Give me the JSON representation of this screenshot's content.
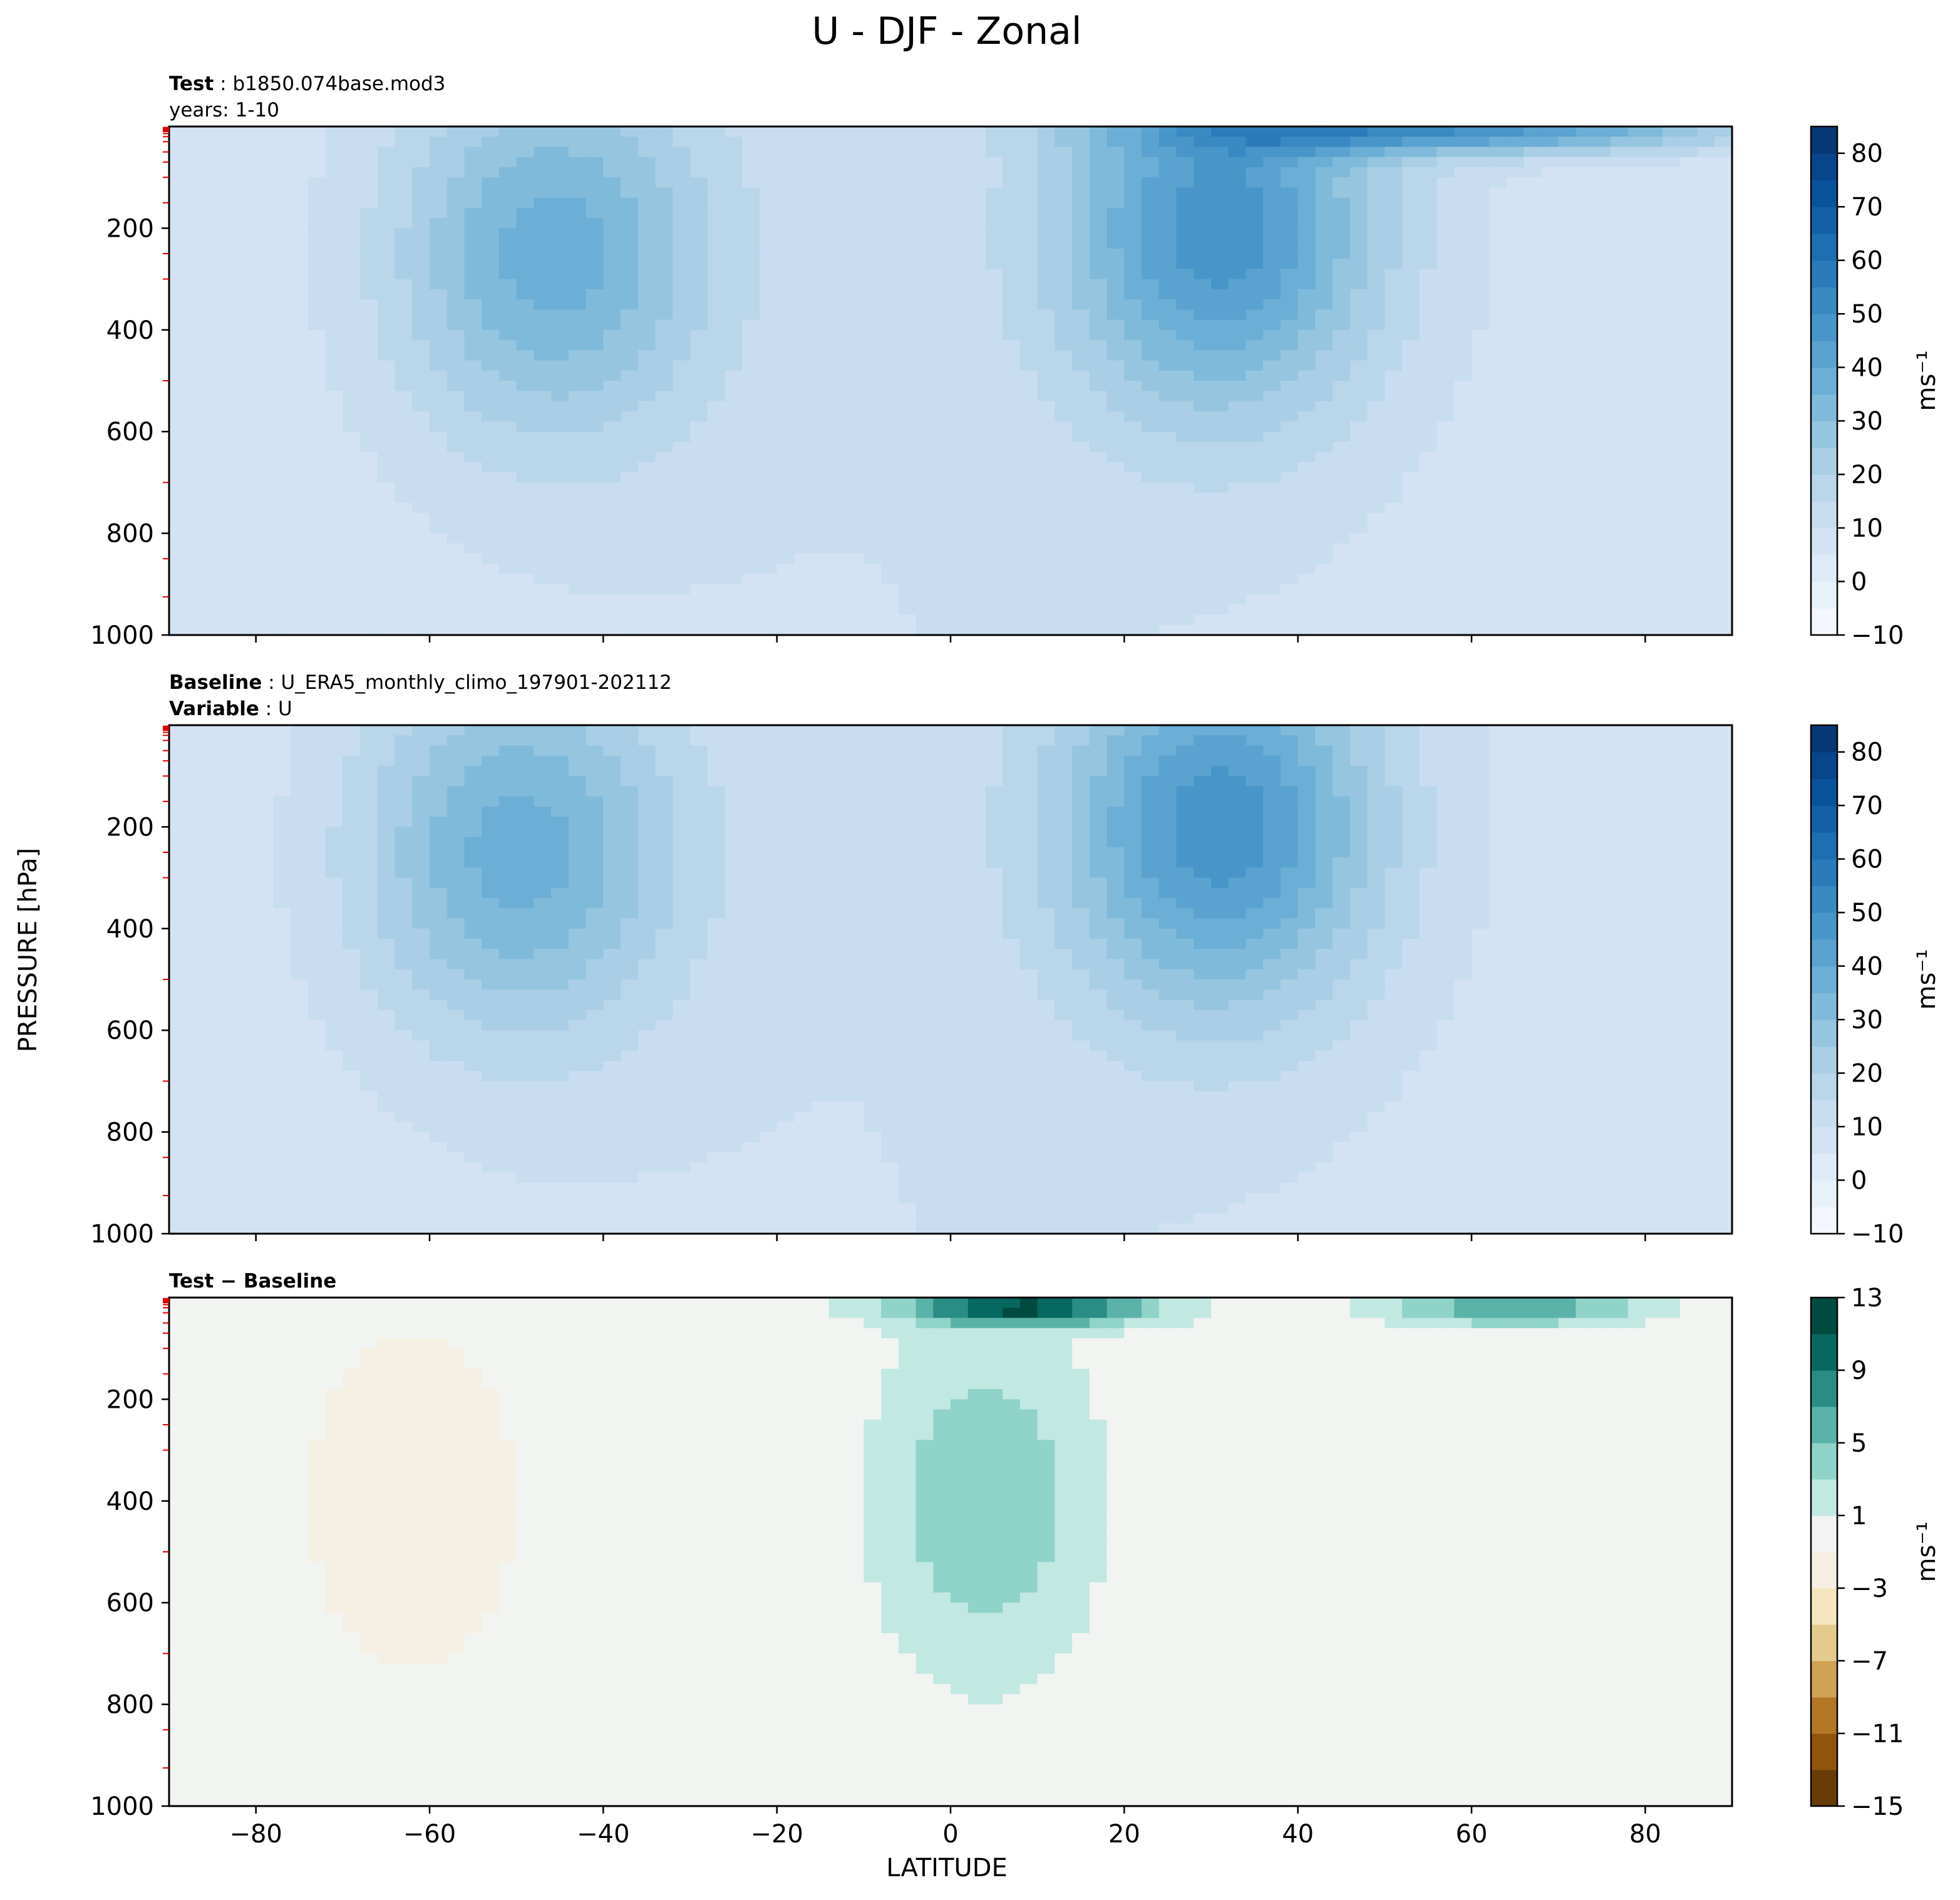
{
  "figure": {
    "title": "U - DJF - Zonal",
    "ylabel": "PRESSURE [hPa]",
    "xlabel": "LATITUDE"
  },
  "panels": [
    {
      "header": [
        {
          "bold": "Test",
          "sep": " : ",
          "text": "b1850.074base.mod3"
        },
        {
          "bold": "",
          "sep": "",
          "text": "years: 1-10"
        }
      ],
      "colorbar_label": "ms⁻¹"
    },
    {
      "header": [
        {
          "bold": "Baseline",
          "sep": " : ",
          "text": "U_ERA5_monthly_climo_197901-202112"
        },
        {
          "bold": "Variable",
          "sep": " : ",
          "text": "U"
        }
      ],
      "colorbar_label": "ms⁻¹"
    },
    {
      "header": [
        {
          "bold": "Test − Baseline",
          "sep": "",
          "text": ""
        }
      ],
      "colorbar_label": "ms⁻¹"
    }
  ],
  "chart_data": [
    {
      "type": "heatmap",
      "title": "Test : b1850.074base.mod3",
      "xlim": [
        -90,
        90
      ],
      "ylim": [
        1000,
        0
      ],
      "x_ticks": [
        -80,
        -60,
        -40,
        -20,
        0,
        20,
        40,
        60,
        80
      ],
      "y_ticks": [
        200,
        400,
        600,
        800,
        1000
      ],
      "colorbar": {
        "levels": [
          -10,
          -5,
          0,
          5,
          10,
          15,
          20,
          25,
          30,
          35,
          40,
          45,
          50,
          55,
          60,
          65,
          70,
          75,
          80,
          85
        ],
        "tick_labels": [
          "−10",
          "0",
          "10",
          "20",
          "30",
          "40",
          "50",
          "60",
          "70",
          "80"
        ],
        "colormap": "Blues",
        "label": "ms⁻¹"
      },
      "features": [
        {
          "name": "southern jet core",
          "lat": -46,
          "pressure": 250,
          "value": 35
        },
        {
          "name": "northern jet core",
          "lat": 31,
          "pressure": 200,
          "value": 45
        },
        {
          "name": "stratospheric jet",
          "lat": 60,
          "pressure": 5,
          "value": 45
        }
      ]
    },
    {
      "type": "heatmap",
      "title": "Baseline : U_ERA5_monthly_climo_197901-202112",
      "xlim": [
        -90,
        90
      ],
      "ylim": [
        1000,
        0
      ],
      "x_ticks": [
        -80,
        -60,
        -40,
        -20,
        0,
        20,
        40,
        60,
        80
      ],
      "y_ticks": [
        200,
        400,
        600,
        800,
        1000
      ],
      "colorbar": {
        "levels": [
          -10,
          -5,
          0,
          5,
          10,
          15,
          20,
          25,
          30,
          35,
          40,
          45,
          50,
          55,
          60,
          65,
          70,
          75,
          80,
          85
        ],
        "tick_labels": [
          "−10",
          "0",
          "10",
          "20",
          "30",
          "40",
          "50",
          "60",
          "70",
          "80"
        ],
        "colormap": "Blues",
        "label": "ms⁻¹"
      },
      "features": [
        {
          "name": "southern jet core",
          "lat": -50,
          "pressure": 250,
          "value": 35
        },
        {
          "name": "northern jet core",
          "lat": 31,
          "pressure": 200,
          "value": 45
        }
      ]
    },
    {
      "type": "heatmap",
      "title": "Test − Baseline",
      "xlim": [
        -90,
        90
      ],
      "ylim": [
        1000,
        0
      ],
      "x_ticks": [
        -80,
        -60,
        -40,
        -20,
        0,
        20,
        40,
        60,
        80
      ],
      "y_ticks": [
        200,
        400,
        600,
        800,
        1000
      ],
      "colorbar": {
        "levels": [
          -15,
          -13,
          -11,
          -9,
          -7,
          -5,
          -3,
          -1,
          1,
          3,
          5,
          7,
          9,
          11,
          13
        ],
        "tick_labels": [
          "−15",
          "−11",
          "−7",
          "−3",
          "1",
          "5",
          "9",
          "13"
        ],
        "colormap": "BrBG",
        "label": "ms⁻¹"
      },
      "features": [
        {
          "name": "equatorial stratospheric maximum",
          "lat": 9,
          "pressure": 20,
          "value": 11
        },
        {
          "name": "tropical mid-troposphere positive",
          "lat": 4,
          "pressure": 400,
          "value": 5
        },
        {
          "name": "southern midlatitude negative",
          "lat": -62,
          "pressure": 400,
          "value": -3
        },
        {
          "name": "northern high stratosphere positive",
          "lat": 65,
          "pressure": 20,
          "value": 7
        }
      ]
    }
  ]
}
